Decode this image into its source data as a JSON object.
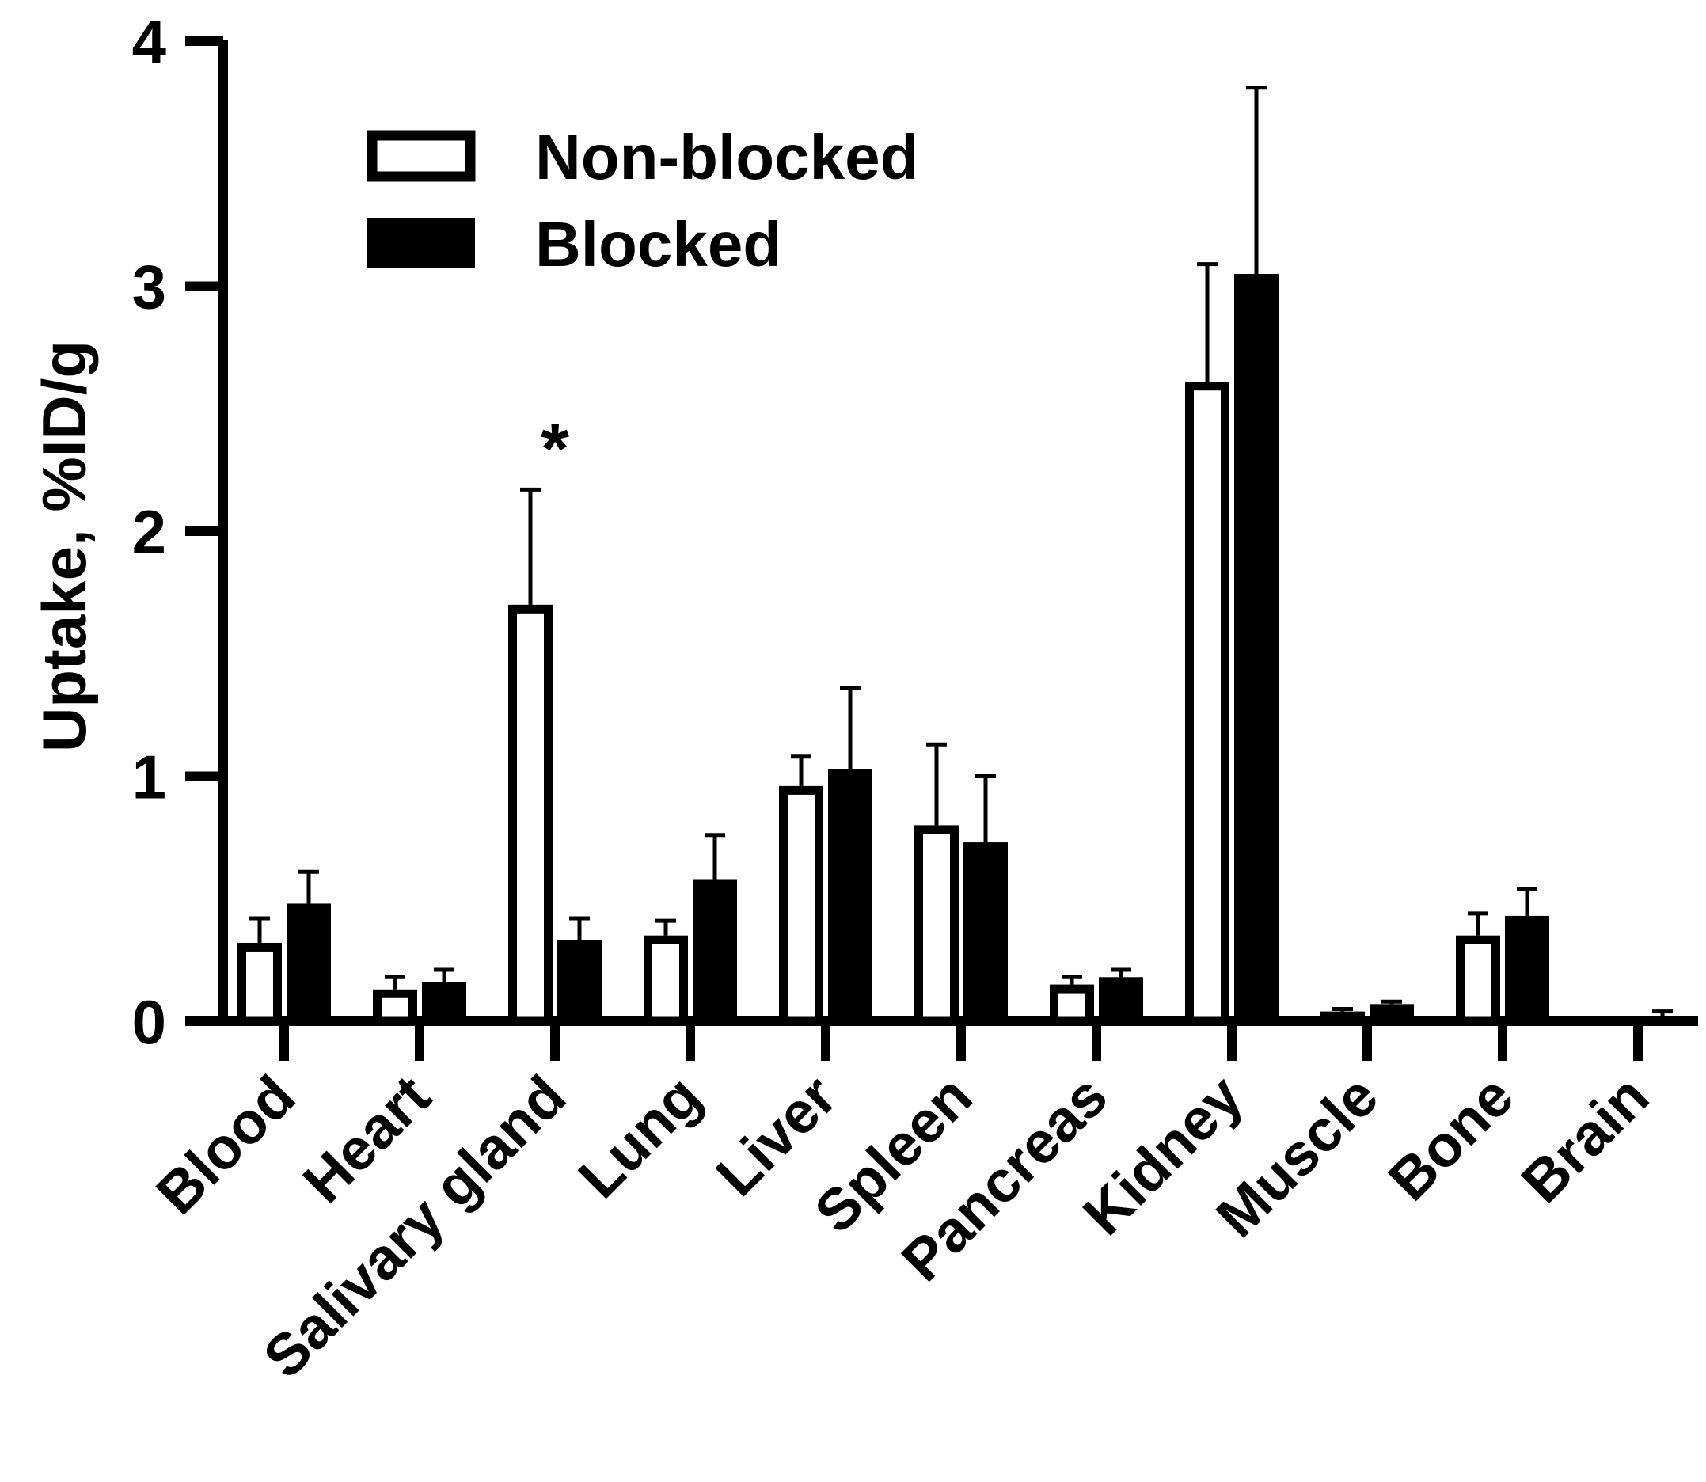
{
  "chart_data": {
    "type": "bar",
    "ylabel": "Uptake, %ID/g",
    "xlabel": "",
    "title": "",
    "ylim": [
      0,
      4
    ],
    "yticks": [
      0,
      1,
      2,
      3,
      4
    ],
    "categories": [
      "Blood",
      "Heart",
      "Salivary gland",
      "Lung",
      "Liver",
      "Spleen",
      "Pancreas",
      "Kidney",
      "Muscle",
      "Bone",
      "Brain"
    ],
    "series": [
      {
        "name": "Non-blocked",
        "style": "hollow",
        "values": [
          0.32,
          0.13,
          1.7,
          0.35,
          0.96,
          0.8,
          0.15,
          2.61,
          0.04,
          0.35,
          0.0
        ],
        "errors": [
          0.1,
          0.05,
          0.47,
          0.06,
          0.12,
          0.33,
          0.03,
          0.48,
          0.01,
          0.09,
          0.0
        ]
      },
      {
        "name": "Blocked",
        "style": "filled",
        "values": [
          0.48,
          0.16,
          0.33,
          0.58,
          1.03,
          0.73,
          0.18,
          3.05,
          0.07,
          0.43,
          0.02
        ],
        "errors": [
          0.13,
          0.05,
          0.09,
          0.18,
          0.33,
          0.27,
          0.03,
          0.76,
          0.01,
          0.11,
          0.02
        ]
      }
    ],
    "annotations": [
      {
        "category": "Salivary gland",
        "text": "*"
      }
    ],
    "legend": {
      "position": "top-left",
      "entries": [
        "Non-blocked",
        "Blocked"
      ]
    },
    "grid": false,
    "colors": {
      "bar": "#000000",
      "hollow_fill": "#ffffff",
      "background": "#ffffff"
    }
  }
}
